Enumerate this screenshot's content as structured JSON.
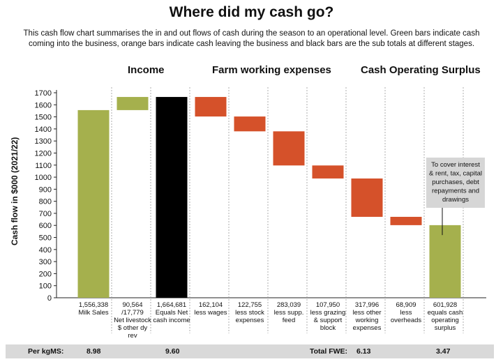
{
  "title": "Where did my cash go?",
  "subtitle": "This cash flow chart summarises the in and out flows of cash during the season to an operational level. Green bars indicate cash coming into the business, orange bars indicate cash leaving the business and black bars are the sub totals at different stages.",
  "sections": [
    "Income",
    "Farm working expenses",
    "Cash Operating Surplus"
  ],
  "colors": {
    "income": "#a5b04d",
    "expense": "#d5512a",
    "subtotal": "#000000",
    "callout": "#d6d6d6"
  },
  "footer": {
    "per_kgms_label": "Per kgMS:",
    "per_kgms_values": [
      "8.98",
      "9.60"
    ],
    "total_fwe_label": "Total FWE:",
    "total_fwe_value": "6.13",
    "surplus_value": "3.47"
  },
  "chart_data": {
    "type": "bar",
    "subtype": "waterfall",
    "ylabel": "Cash flow in $000 (2021/22)",
    "ylim": [
      0,
      1700
    ],
    "yticks": [
      0,
      100,
      200,
      300,
      400,
      500,
      600,
      700,
      800,
      900,
      1000,
      1100,
      1200,
      1300,
      1400,
      1500,
      1600,
      1700
    ],
    "bars": [
      {
        "value": "1,556,338",
        "label": [
          "Milk Sales"
        ],
        "start": 0,
        "end": 1556,
        "kind": "income"
      },
      {
        "value": "90,564 /17,779",
        "label": [
          "Net livestock",
          "$ other dy",
          "rev"
        ],
        "start": 1556,
        "end": 1665,
        "kind": "income"
      },
      {
        "value": "1,664,681",
        "label": [
          "Equals Net",
          "cash income"
        ],
        "start": 0,
        "end": 1665,
        "kind": "subtotal"
      },
      {
        "value": "162,104",
        "label": [
          "less wages"
        ],
        "start": 1503,
        "end": 1665,
        "kind": "expense"
      },
      {
        "value": "122,755",
        "label": [
          "less stock",
          "expenses"
        ],
        "start": 1380,
        "end": 1503,
        "kind": "expense"
      },
      {
        "value": "283,039",
        "label": [
          "less supp.",
          "feed"
        ],
        "start": 1097,
        "end": 1380,
        "kind": "expense"
      },
      {
        "value": "107,950",
        "label": [
          "less grazing",
          "& support",
          "block"
        ],
        "start": 989,
        "end": 1097,
        "kind": "expense"
      },
      {
        "value": "317,996",
        "label": [
          "less other",
          "working",
          "expenses"
        ],
        "start": 671,
        "end": 989,
        "kind": "expense"
      },
      {
        "value": "68,909",
        "label": [
          "less",
          "overheads"
        ],
        "start": 602,
        "end": 671,
        "kind": "expense"
      },
      {
        "value": "601,928",
        "label": [
          "equals cash",
          "operating",
          "surplus"
        ],
        "start": 0,
        "end": 602,
        "kind": "subtotal_income"
      }
    ],
    "annotation": [
      "To cover interest",
      "& rent, tax, capital",
      "purchases, debt",
      "repayments and",
      "drawings"
    ]
  }
}
